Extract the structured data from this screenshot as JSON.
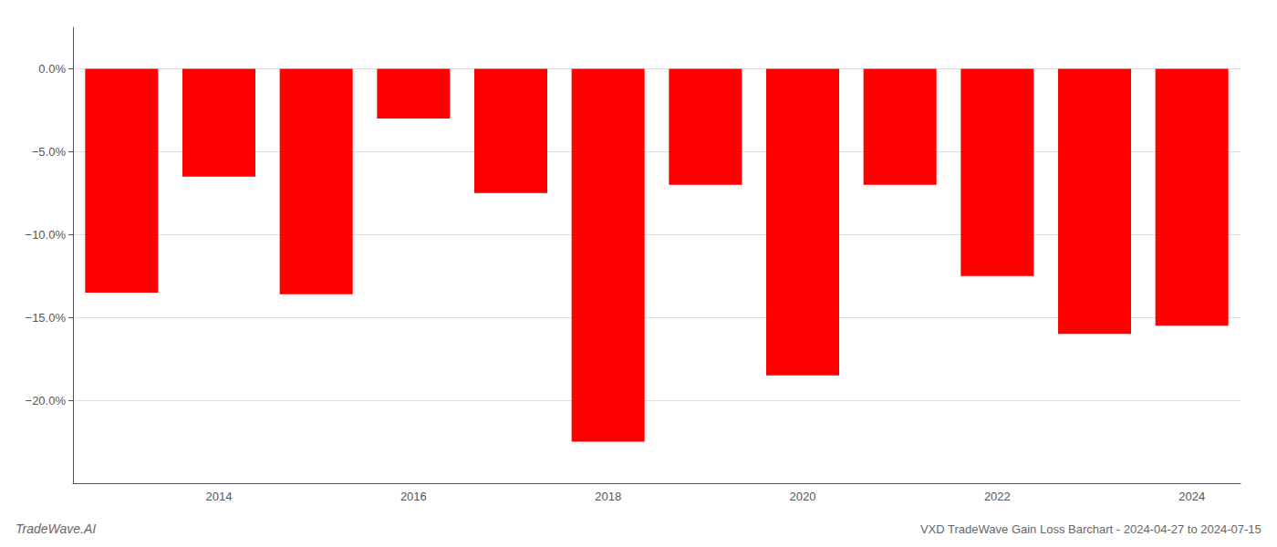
{
  "chart_data": {
    "type": "bar",
    "title": "VXD TradeWave Gain Loss Barchart - 2024-04-27 to 2024-07-15",
    "annotations": [
      "TradeWave.AI"
    ],
    "categories": [
      null,
      "2014",
      null,
      "2016",
      null,
      "2018",
      null,
      "2020",
      null,
      "2022",
      null,
      "2024"
    ],
    "values": [
      -13.5,
      -6.5,
      -13.6,
      -3.0,
      -7.5,
      -22.5,
      -7.0,
      -18.5,
      -7.0,
      -12.5,
      -16.0,
      -15.5
    ],
    "color": "#ff0000",
    "ylim": [
      -25.0,
      2.5
    ],
    "yticks": [
      {
        "value": 0.0,
        "label": "0.0%"
      },
      {
        "value": -5.0,
        "label": "−5.0%"
      },
      {
        "value": -10.0,
        "label": "−10.0%"
      },
      {
        "value": -15.0,
        "label": "−15.0%"
      },
      {
        "value": -20.0,
        "label": "−20.0%"
      }
    ],
    "grid": true
  }
}
